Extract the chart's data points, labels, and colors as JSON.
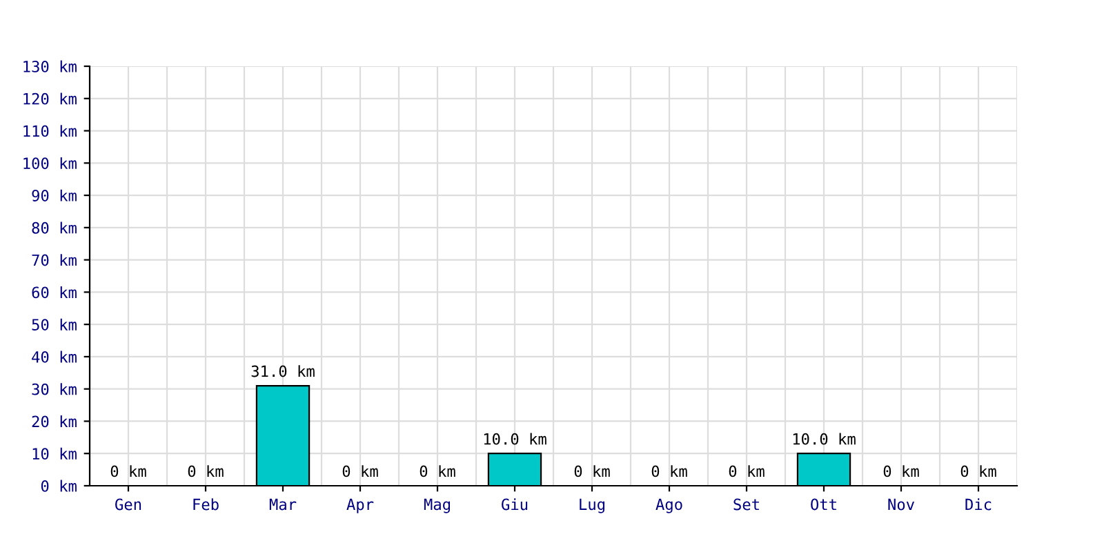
{
  "chart_data": {
    "type": "bar",
    "categories": [
      "Gen",
      "Feb",
      "Mar",
      "Apr",
      "Mag",
      "Giu",
      "Lug",
      "Ago",
      "Set",
      "Ott",
      "Nov",
      "Dic"
    ],
    "values": [
      0,
      0,
      31,
      0,
      0,
      10,
      0,
      0,
      0,
      10,
      0,
      0
    ],
    "value_labels": [
      "0 km",
      "0 km",
      "31.0 km",
      "0 km",
      "0 km",
      "10.0 km",
      "0 km",
      "0 km",
      "0 km",
      "10.0 km",
      "0 km",
      "0 km"
    ],
    "color": "#00c8c8",
    "ylim": [
      0,
      130
    ],
    "yticks": [
      {
        "value": 0,
        "label": "0 km"
      },
      {
        "value": 10,
        "label": "10 km"
      },
      {
        "value": 20,
        "label": "20 km"
      },
      {
        "value": 30,
        "label": "30 km"
      },
      {
        "value": 40,
        "label": "40 km"
      },
      {
        "value": 50,
        "label": "50 km"
      },
      {
        "value": 60,
        "label": "60 km"
      },
      {
        "value": 70,
        "label": "70 km"
      },
      {
        "value": 80,
        "label": "80 km"
      },
      {
        "value": 90,
        "label": "90 km"
      },
      {
        "value": 100,
        "label": "100 km"
      },
      {
        "value": 110,
        "label": "110 km"
      },
      {
        "value": 120,
        "label": "120 km"
      },
      {
        "value": 130,
        "label": "130 km"
      }
    ],
    "grid": true
  }
}
